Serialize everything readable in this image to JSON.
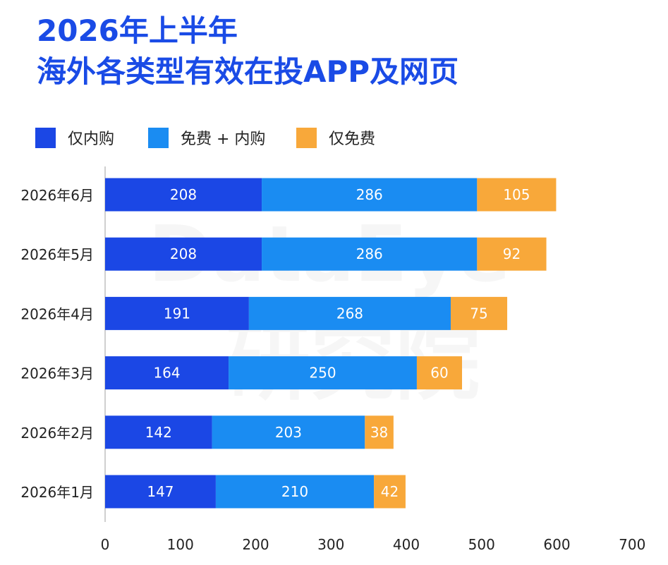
{
  "title": {
    "line1": "2026年上半年",
    "line2": "海外各类型有效在投APP及网页"
  },
  "watermark": {
    "line1": "DataEye",
    "line2": "研究院"
  },
  "legend": [
    {
      "label": "仅内购",
      "color": "#1b47e5"
    },
    {
      "label": "免费 + 内购",
      "color": "#1a8cf2"
    },
    {
      "label": "仅免费",
      "color": "#f8a83a"
    }
  ],
  "chart_data": {
    "type": "bar",
    "orientation": "horizontal",
    "stacked": true,
    "categories": [
      "2026年6月",
      "2026年5月",
      "2026年4月",
      "2026年3月",
      "2026年2月",
      "2026年1月"
    ],
    "series": [
      {
        "name": "仅内购",
        "color": "#1b47e5",
        "values": [
          208,
          208,
          191,
          164,
          142,
          147
        ]
      },
      {
        "name": "免费 + 内购",
        "color": "#1a8cf2",
        "values": [
          286,
          286,
          268,
          250,
          203,
          210
        ]
      },
      {
        "name": "仅免费",
        "color": "#f8a83a",
        "values": [
          105,
          92,
          75,
          60,
          38,
          42
        ]
      }
    ],
    "xlim": [
      0,
      700
    ],
    "xticks": [
      0,
      100,
      200,
      300,
      400,
      500,
      600,
      700
    ],
    "grid": false,
    "legend_position": "top-left",
    "data_labels": true
  }
}
